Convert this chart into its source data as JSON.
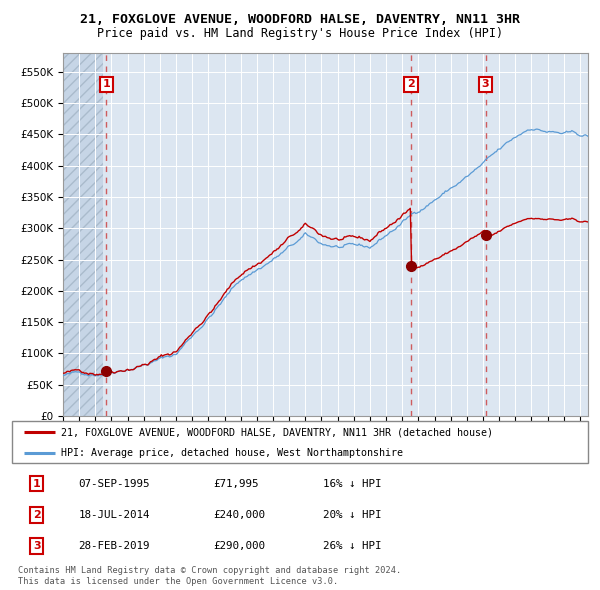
{
  "title": "21, FOXGLOVE AVENUE, WOODFORD HALSE, DAVENTRY, NN11 3HR",
  "subtitle": "Price paid vs. HM Land Registry's House Price Index (HPI)",
  "legend_red": "21, FOXGLOVE AVENUE, WOODFORD HALSE, DAVENTRY, NN11 3HR (detached house)",
  "legend_blue": "HPI: Average price, detached house, West Northamptonshire",
  "transactions": [
    {
      "num": 1,
      "date_str": "07-SEP-1995",
      "year": 1995.69,
      "price": 71995,
      "pct": "16%",
      "dir": "↓"
    },
    {
      "num": 2,
      "date_str": "18-JUL-2014",
      "year": 2014.54,
      "price": 240000,
      "pct": "20%",
      "dir": "↓"
    },
    {
      "num": 3,
      "date_str": "28-FEB-2019",
      "year": 2019.16,
      "price": 290000,
      "pct": "26%",
      "dir": "↓"
    }
  ],
  "footer1": "Contains HM Land Registry data © Crown copyright and database right 2024.",
  "footer2": "This data is licensed under the Open Government Licence v3.0.",
  "ylim": [
    0,
    580000
  ],
  "xlim_start": 1993.0,
  "xlim_end": 2025.5,
  "background_color": "#dce6f1",
  "red_line_color": "#c00000",
  "blue_line_color": "#5b9bd5",
  "grid_color": "#ffffff",
  "vline_color": "#cc4444",
  "marker_color": "#8b0000",
  "box_color": "#cc0000",
  "hatch_end": 1995.5
}
